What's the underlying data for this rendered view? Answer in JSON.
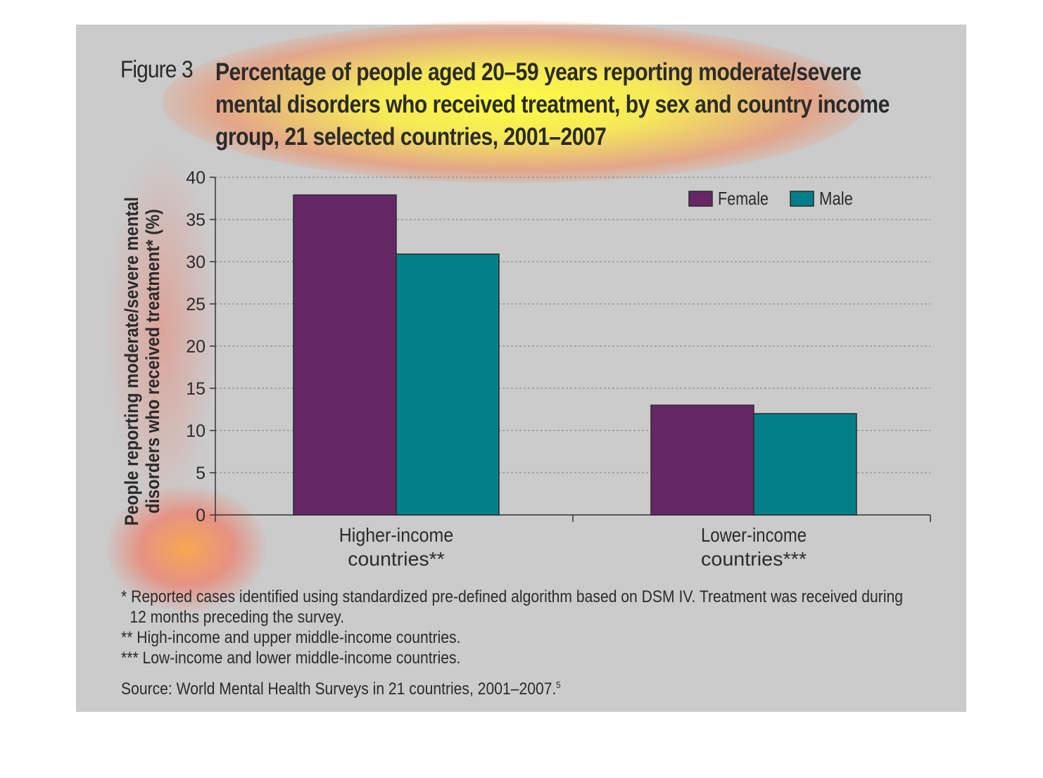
{
  "figure": {
    "label": "Figure",
    "number": "3",
    "title": "Percentage of people aged 20–59 years reporting moderate/severe mental disorders who received treatment, by sex and country income group, 21 selected countries, 2001–2007"
  },
  "chart_data": {
    "type": "bar",
    "categories": [
      "Higher-income countries**",
      "Lower-income countries***"
    ],
    "category_lines": [
      [
        "Higher-income",
        "countries**"
      ],
      [
        "Lower-income",
        "countries***"
      ]
    ],
    "series": [
      {
        "name": "Female",
        "values": [
          37.9,
          13
        ],
        "color": "#662766"
      },
      {
        "name": "Male",
        "values": [
          30.9,
          12
        ],
        "color": "#037f88"
      }
    ],
    "ylabel_lines": [
      "People reporting moderate/severe mental",
      "disorders who received treatment* (%)"
    ],
    "ylim": [
      0,
      40
    ],
    "yticks": [
      "0",
      "5",
      "10",
      "15",
      "20",
      "25",
      "30",
      "35",
      "40"
    ],
    "grid": true,
    "legend": "top-right"
  },
  "notes": [
    "* Reported cases identified using standardized pre-defined algorithm based on DSM IV. Treatment was received during",
    "12 months preceding the survey.",
    "** High-income and upper middle-income countries.",
    "*** Low-income and lower middle-income countries."
  ],
  "source": {
    "text": "Source: World Mental Health Surveys in 21 countries, 2001–2007.",
    "ref": "5"
  }
}
